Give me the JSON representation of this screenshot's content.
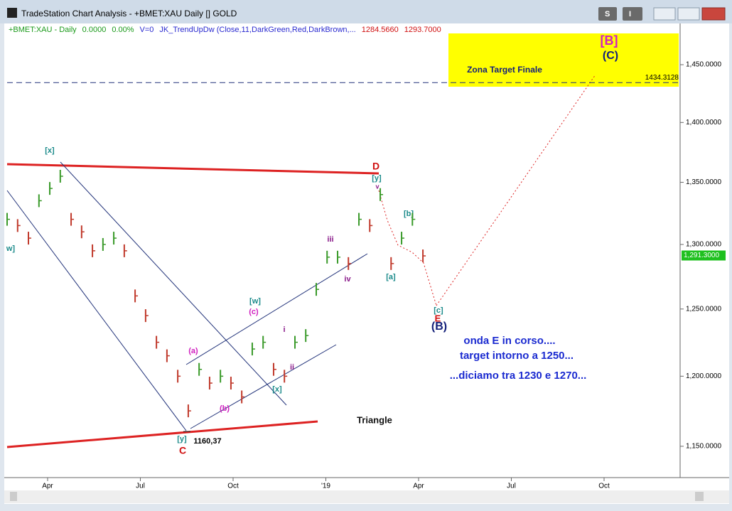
{
  "window": {
    "title": "TradeStation Chart Analysis - +BMET:XAU Daily [] GOLD",
    "buttons": [
      "S",
      "I"
    ]
  },
  "chart_data": {
    "type": "bar",
    "log_scale": true,
    "header_items": [
      "+BMET:XAU - Daily",
      "0.0000",
      "0.00%",
      "V=0",
      "JK_TrendUpDw (Close,11,DarkGreen,Red,DarkBrown,...",
      "1284.5660",
      "1293.7000"
    ],
    "x": [
      1.69,
      2.03,
      2.38,
      2.72,
      3.07,
      3.41,
      3.76,
      4.1,
      4.45,
      4.79,
      5.14,
      5.48,
      5.83,
      6.17,
      6.52,
      6.86,
      7.21,
      7.55,
      7.9,
      8.24,
      8.59,
      8.93,
      9.28,
      9.62,
      9.97,
      10.31,
      10.66,
      11,
      11.35,
      11.69,
      12.04,
      12.38,
      12.73,
      13.07,
      13.42,
      13.76,
      14.11,
      14.45,
      14.8,
      15.14
    ],
    "values": [
      1320,
      1315,
      1305,
      1335,
      1345,
      1355,
      1320,
      1310,
      1295,
      1300,
      1305,
      1295,
      1260,
      1245,
      1225,
      1215,
      1200,
      1175,
      1205,
      1195,
      1200,
      1195,
      1185,
      1220,
      1225,
      1205,
      1200,
      1225,
      1230,
      1265,
      1290,
      1290,
      1285,
      1320,
      1315,
      1340,
      1285,
      1305,
      1320,
      1291
    ],
    "up_color": "#3a9a2a",
    "down_color": "#c0392b",
    "xlim": [
      1.69,
      23.46
    ],
    "ylim": [
      1129.3,
      1485.5
    ],
    "xticks": [
      {
        "value": 3,
        "label": "Apr"
      },
      {
        "value": 6,
        "label": "Jul"
      },
      {
        "value": 9,
        "label": "Oct"
      },
      {
        "value": 12,
        "label": "'19"
      },
      {
        "value": 15,
        "label": "Apr"
      },
      {
        "value": 18,
        "label": "Jul"
      },
      {
        "value": 21,
        "label": "Oct"
      }
    ],
    "yticks": [
      {
        "value": 1150,
        "label": "1,150.0000"
      },
      {
        "value": 1200,
        "label": "1,200.0000"
      },
      {
        "value": 1250,
        "label": "1,250.0000"
      },
      {
        "value": 1300,
        "label": "1,300.0000"
      },
      {
        "value": 1350,
        "label": "1,350.0000"
      },
      {
        "value": 1400,
        "label": "1,400.0000"
      },
      {
        "value": 1450,
        "label": "1,450.0000"
      }
    ],
    "target_line": 1434.3128,
    "last_price": {
      "value": 1291.3,
      "label": "1,291.3000"
    },
    "low_label": {
      "value": 1160.37,
      "label": "1160,37"
    },
    "annotations": [
      "[x]",
      "w]",
      "D",
      "[y]",
      "v",
      "[b]",
      "iii",
      "iv",
      "[a]",
      "[c]",
      "E",
      "(B)",
      "[w]",
      "(c)",
      "i",
      "ii",
      "(a)",
      "(b)",
      "[x]",
      "[y]",
      "C",
      "Triangle",
      "Zona Target Finale",
      "[B]",
      "(C)",
      "onda E in corso....",
      "target intorno a 1250...",
      "...diciamo tra 1230 e 1270..."
    ]
  }
}
